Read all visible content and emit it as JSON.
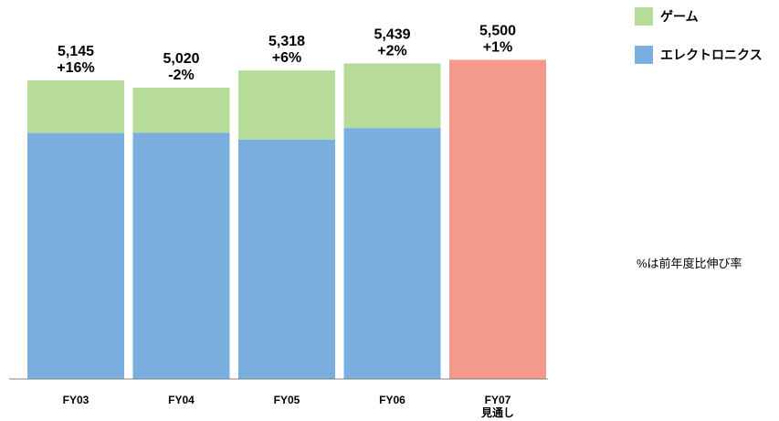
{
  "chart_data": {
    "type": "bar",
    "stacked": true,
    "categories": [
      "FY03",
      "FY04",
      "FY05",
      "FY06",
      "FY07\n見通し"
    ],
    "series": [
      {
        "name": "エレクトロニクス",
        "color": "#7aaedf",
        "values": [
          4240,
          4245,
          4125,
          4325,
          null
        ]
      },
      {
        "name": "ゲーム",
        "color": "#b7dc99",
        "values": [
          905,
          775,
          1193,
          1114,
          null
        ]
      },
      {
        "name": "",
        "color": "#f39a8a",
        "values": [
          null,
          null,
          null,
          null,
          5500
        ]
      }
    ],
    "totals": [
      5145,
      5020,
      5318,
      5439,
      5500
    ],
    "data_labels": [
      {
        "value": "5,145",
        "growth": "+16%"
      },
      {
        "value": "5,020",
        "growth": "-2%"
      },
      {
        "value": "5,318",
        "growth": "+6%"
      },
      {
        "value": "5,439",
        "growth": "+2%"
      },
      {
        "value": "5,500",
        "growth": "+1%"
      }
    ],
    "ylim": [
      0,
      6500
    ],
    "grid": false,
    "legend_position": "top-right",
    "note": "%は前年度比伸び率"
  }
}
